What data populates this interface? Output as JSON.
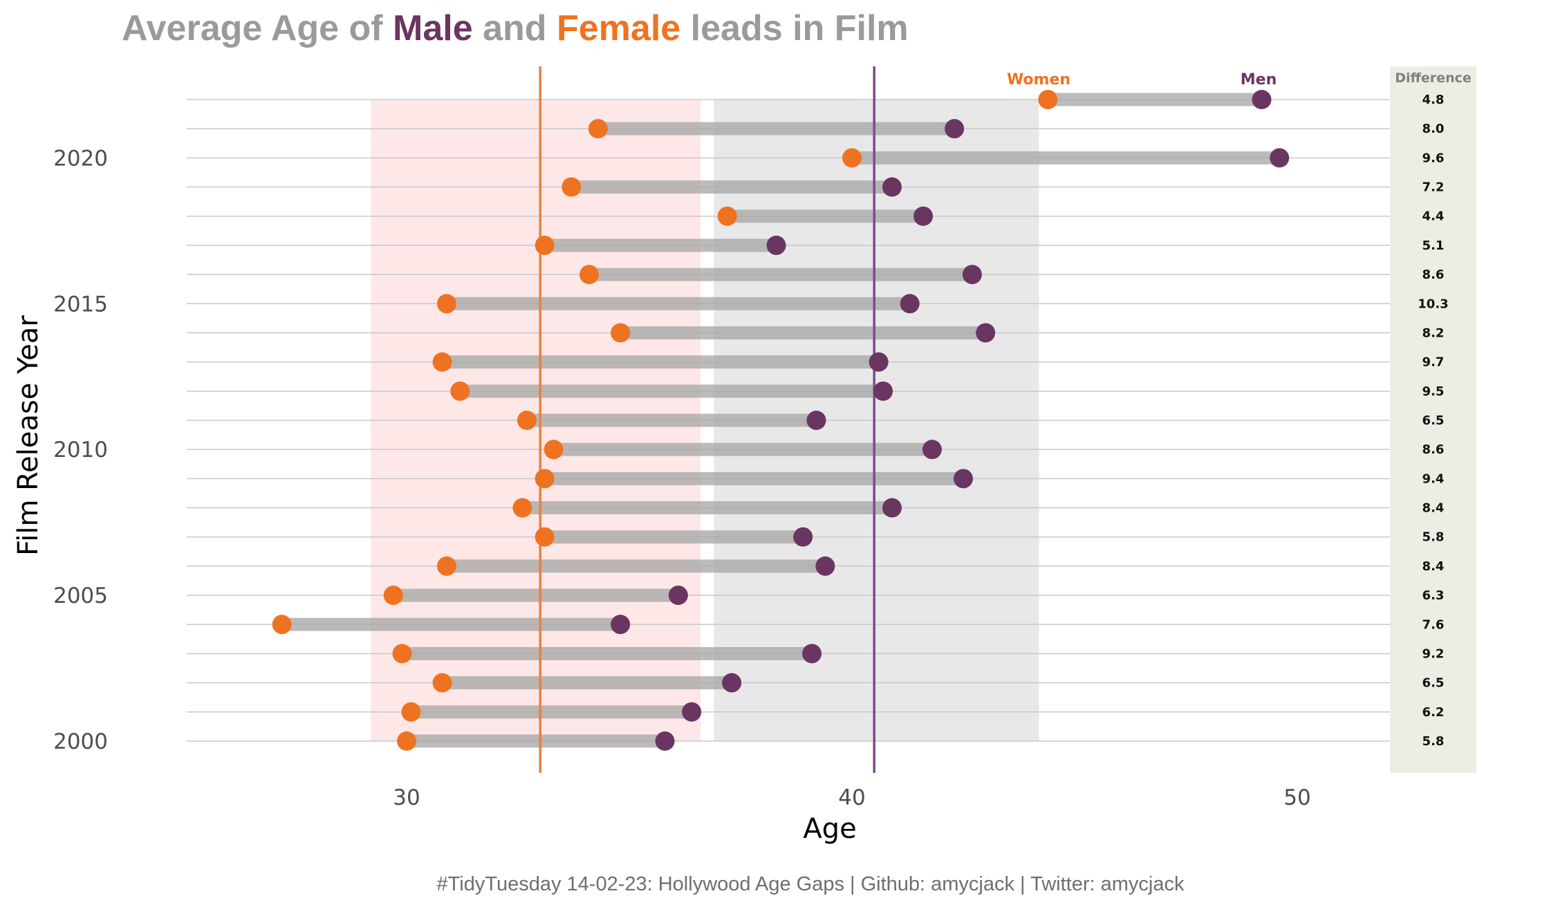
{
  "title": {
    "part1": "Average Age of ",
    "male": "Male",
    "part2": " and ",
    "female": "Female",
    "part3": " leads in Film"
  },
  "caption": "#TidyTuesday 14-02-23: Hollywood Age Gaps | Github: amycjack | Twitter: amycjack",
  "colors": {
    "male": "#6a3560",
    "female": "#ef7220",
    "male_line": "#7d4a8a",
    "female_line": "#e8823c",
    "title_gray": "#9a9a9a",
    "female_band": "#fde7e7",
    "male_band": "#e8e8e8",
    "diff_panel": "#ededE3",
    "segment": "#a8a8a8",
    "gridline": "#c8c8c8"
  },
  "chart_data": {
    "type": "dumbbell",
    "xlabel": "Age",
    "ylabel": "Film Release Year",
    "xlim": [
      25,
      52
    ],
    "ylim": [
      1998.9,
      2022.5
    ],
    "x_ticks": [
      30,
      40,
      50
    ],
    "y_ticks": [
      2000,
      2005,
      2010,
      2015,
      2020
    ],
    "legend": {
      "women": "Women",
      "men": "Men",
      "difference": "Difference"
    },
    "reference_lines": {
      "female_mean": 33.0,
      "male_mean": 40.5
    },
    "bands": {
      "female": [
        29.2,
        36.6
      ],
      "male": [
        36.9,
        44.2
      ]
    },
    "series": [
      {
        "name": "Women",
        "key": "women"
      },
      {
        "name": "Men",
        "key": "men"
      }
    ],
    "rows": [
      {
        "year": 2000,
        "women": 30.0,
        "men": 35.8,
        "diff": "5.8"
      },
      {
        "year": 2001,
        "women": 30.1,
        "men": 36.4,
        "diff": "6.2"
      },
      {
        "year": 2002,
        "women": 30.8,
        "men": 37.3,
        "diff": "6.5"
      },
      {
        "year": 2003,
        "women": 29.9,
        "men": 39.1,
        "diff": "9.2"
      },
      {
        "year": 2004,
        "women": 27.2,
        "men": 34.8,
        "diff": "7.6"
      },
      {
        "year": 2005,
        "women": 29.7,
        "men": 36.1,
        "diff": "6.3"
      },
      {
        "year": 2006,
        "women": 30.9,
        "men": 39.4,
        "diff": "8.4"
      },
      {
        "year": 2007,
        "women": 33.1,
        "men": 38.9,
        "diff": "5.8"
      },
      {
        "year": 2008,
        "women": 32.6,
        "men": 40.9,
        "diff": "8.4"
      },
      {
        "year": 2009,
        "women": 33.1,
        "men": 42.5,
        "diff": "9.4"
      },
      {
        "year": 2010,
        "women": 33.3,
        "men": 41.8,
        "diff": "8.6"
      },
      {
        "year": 2011,
        "women": 32.7,
        "men": 39.2,
        "diff": "6.5"
      },
      {
        "year": 2012,
        "women": 31.2,
        "men": 40.7,
        "diff": "9.5"
      },
      {
        "year": 2013,
        "women": 30.8,
        "men": 40.6,
        "diff": "9.7"
      },
      {
        "year": 2014,
        "women": 34.8,
        "men": 43.0,
        "diff": "8.2"
      },
      {
        "year": 2015,
        "women": 30.9,
        "men": 41.3,
        "diff": "10.3"
      },
      {
        "year": 2016,
        "women": 34.1,
        "men": 42.7,
        "diff": "8.6"
      },
      {
        "year": 2017,
        "women": 33.1,
        "men": 38.3,
        "diff": "5.1"
      },
      {
        "year": 2018,
        "women": 37.2,
        "men": 41.6,
        "diff": "4.4"
      },
      {
        "year": 2019,
        "women": 33.7,
        "men": 40.9,
        "diff": "7.2"
      },
      {
        "year": 2020,
        "women": 40.0,
        "men": 49.6,
        "diff": "9.6"
      },
      {
        "year": 2021,
        "women": 34.3,
        "men": 42.3,
        "diff": "8.0"
      },
      {
        "year": 2022,
        "women": 44.4,
        "men": 49.2,
        "diff": "4.8"
      }
    ]
  }
}
